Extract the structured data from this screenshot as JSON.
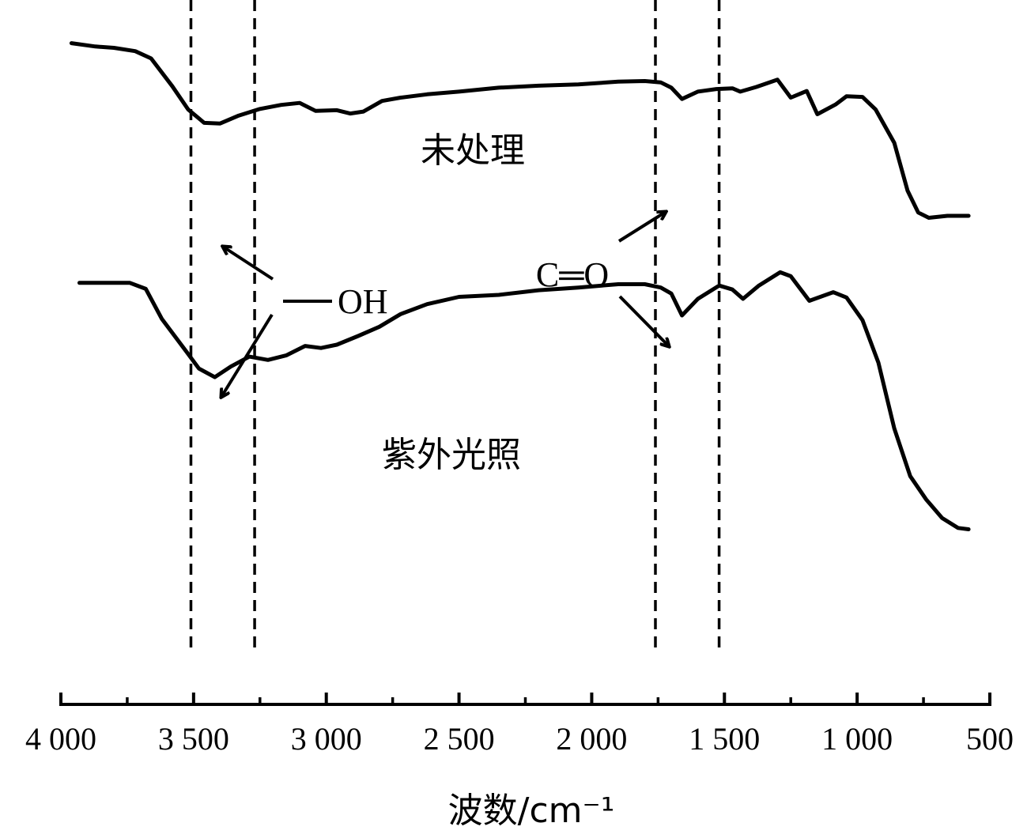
{
  "chart_data": {
    "type": "line",
    "title": "",
    "xlabel": "波数/cm⁻¹",
    "ylabel": "",
    "xlim": [
      4000,
      500
    ],
    "x_reversed": true,
    "x_ticks": [
      {
        "value": 4000,
        "label": "4 000"
      },
      {
        "value": 3500,
        "label": "3 500"
      },
      {
        "value": 3000,
        "label": "3 000"
      },
      {
        "value": 2500,
        "label": "2 500"
      },
      {
        "value": 2000,
        "label": "2 000"
      },
      {
        "value": 1500,
        "label": "1 500"
      },
      {
        "value": 1000,
        "label": "1 000"
      },
      {
        "value": 500,
        "label": "500"
      }
    ],
    "minor_ticks": [
      3750,
      3250,
      2750,
      2250,
      1750,
      1250,
      750
    ],
    "y_axis_shown": false,
    "grid": false,
    "reference_lines": [
      3510,
      3270,
      1760,
      1520
    ],
    "series": [
      {
        "name": "未处理",
        "points": [
          [
            3960,
            0.935
          ],
          [
            3870,
            0.93
          ],
          [
            3800,
            0.928
          ],
          [
            3720,
            0.923
          ],
          [
            3660,
            0.912
          ],
          [
            3580,
            0.87
          ],
          [
            3520,
            0.835
          ],
          [
            3460,
            0.815
          ],
          [
            3400,
            0.814
          ],
          [
            3330,
            0.826
          ],
          [
            3250,
            0.836
          ],
          [
            3170,
            0.842
          ],
          [
            3100,
            0.845
          ],
          [
            3040,
            0.833
          ],
          [
            2960,
            0.834
          ],
          [
            2910,
            0.829
          ],
          [
            2860,
            0.832
          ],
          [
            2790,
            0.848
          ],
          [
            2720,
            0.853
          ],
          [
            2620,
            0.858
          ],
          [
            2500,
            0.862
          ],
          [
            2350,
            0.868
          ],
          [
            2200,
            0.871
          ],
          [
            2050,
            0.873
          ],
          [
            1900,
            0.877
          ],
          [
            1800,
            0.878
          ],
          [
            1740,
            0.876
          ],
          [
            1700,
            0.868
          ],
          [
            1660,
            0.851
          ],
          [
            1600,
            0.862
          ],
          [
            1530,
            0.866
          ],
          [
            1470,
            0.867
          ],
          [
            1440,
            0.862
          ],
          [
            1380,
            0.869
          ],
          [
            1300,
            0.88
          ],
          [
            1250,
            0.853
          ],
          [
            1190,
            0.863
          ],
          [
            1150,
            0.828
          ],
          [
            1080,
            0.843
          ],
          [
            1040,
            0.855
          ],
          [
            980,
            0.854
          ],
          [
            930,
            0.835
          ],
          [
            860,
            0.785
          ],
          [
            810,
            0.713
          ],
          [
            770,
            0.68
          ],
          [
            730,
            0.672
          ],
          [
            660,
            0.675
          ],
          [
            580,
            0.675
          ]
        ]
      },
      {
        "name": "紫外光照",
        "points": [
          [
            3930,
            0.574
          ],
          [
            3840,
            0.574
          ],
          [
            3740,
            0.574
          ],
          [
            3680,
            0.565
          ],
          [
            3620,
            0.52
          ],
          [
            3530,
            0.472
          ],
          [
            3480,
            0.445
          ],
          [
            3420,
            0.432
          ],
          [
            3360,
            0.448
          ],
          [
            3290,
            0.463
          ],
          [
            3220,
            0.458
          ],
          [
            3150,
            0.465
          ],
          [
            3080,
            0.479
          ],
          [
            3020,
            0.476
          ],
          [
            2960,
            0.481
          ],
          [
            2880,
            0.494
          ],
          [
            2800,
            0.508
          ],
          [
            2720,
            0.527
          ],
          [
            2620,
            0.542
          ],
          [
            2500,
            0.553
          ],
          [
            2350,
            0.556
          ],
          [
            2200,
            0.563
          ],
          [
            2050,
            0.567
          ],
          [
            1900,
            0.572
          ],
          [
            1800,
            0.572
          ],
          [
            1740,
            0.567
          ],
          [
            1700,
            0.558
          ],
          [
            1660,
            0.525
          ],
          [
            1600,
            0.55
          ],
          [
            1520,
            0.57
          ],
          [
            1470,
            0.564
          ],
          [
            1430,
            0.55
          ],
          [
            1370,
            0.57
          ],
          [
            1290,
            0.59
          ],
          [
            1250,
            0.584
          ],
          [
            1180,
            0.547
          ],
          [
            1090,
            0.56
          ],
          [
            1040,
            0.552
          ],
          [
            980,
            0.518
          ],
          [
            920,
            0.454
          ],
          [
            860,
            0.355
          ],
          [
            800,
            0.283
          ],
          [
            740,
            0.248
          ],
          [
            680,
            0.22
          ],
          [
            620,
            0.205
          ],
          [
            580,
            0.203
          ]
        ]
      }
    ],
    "annotations": {
      "series_labels": [
        "未处理",
        "紫外光照"
      ],
      "oh_label": "—OH",
      "co_label": "C═O"
    }
  }
}
